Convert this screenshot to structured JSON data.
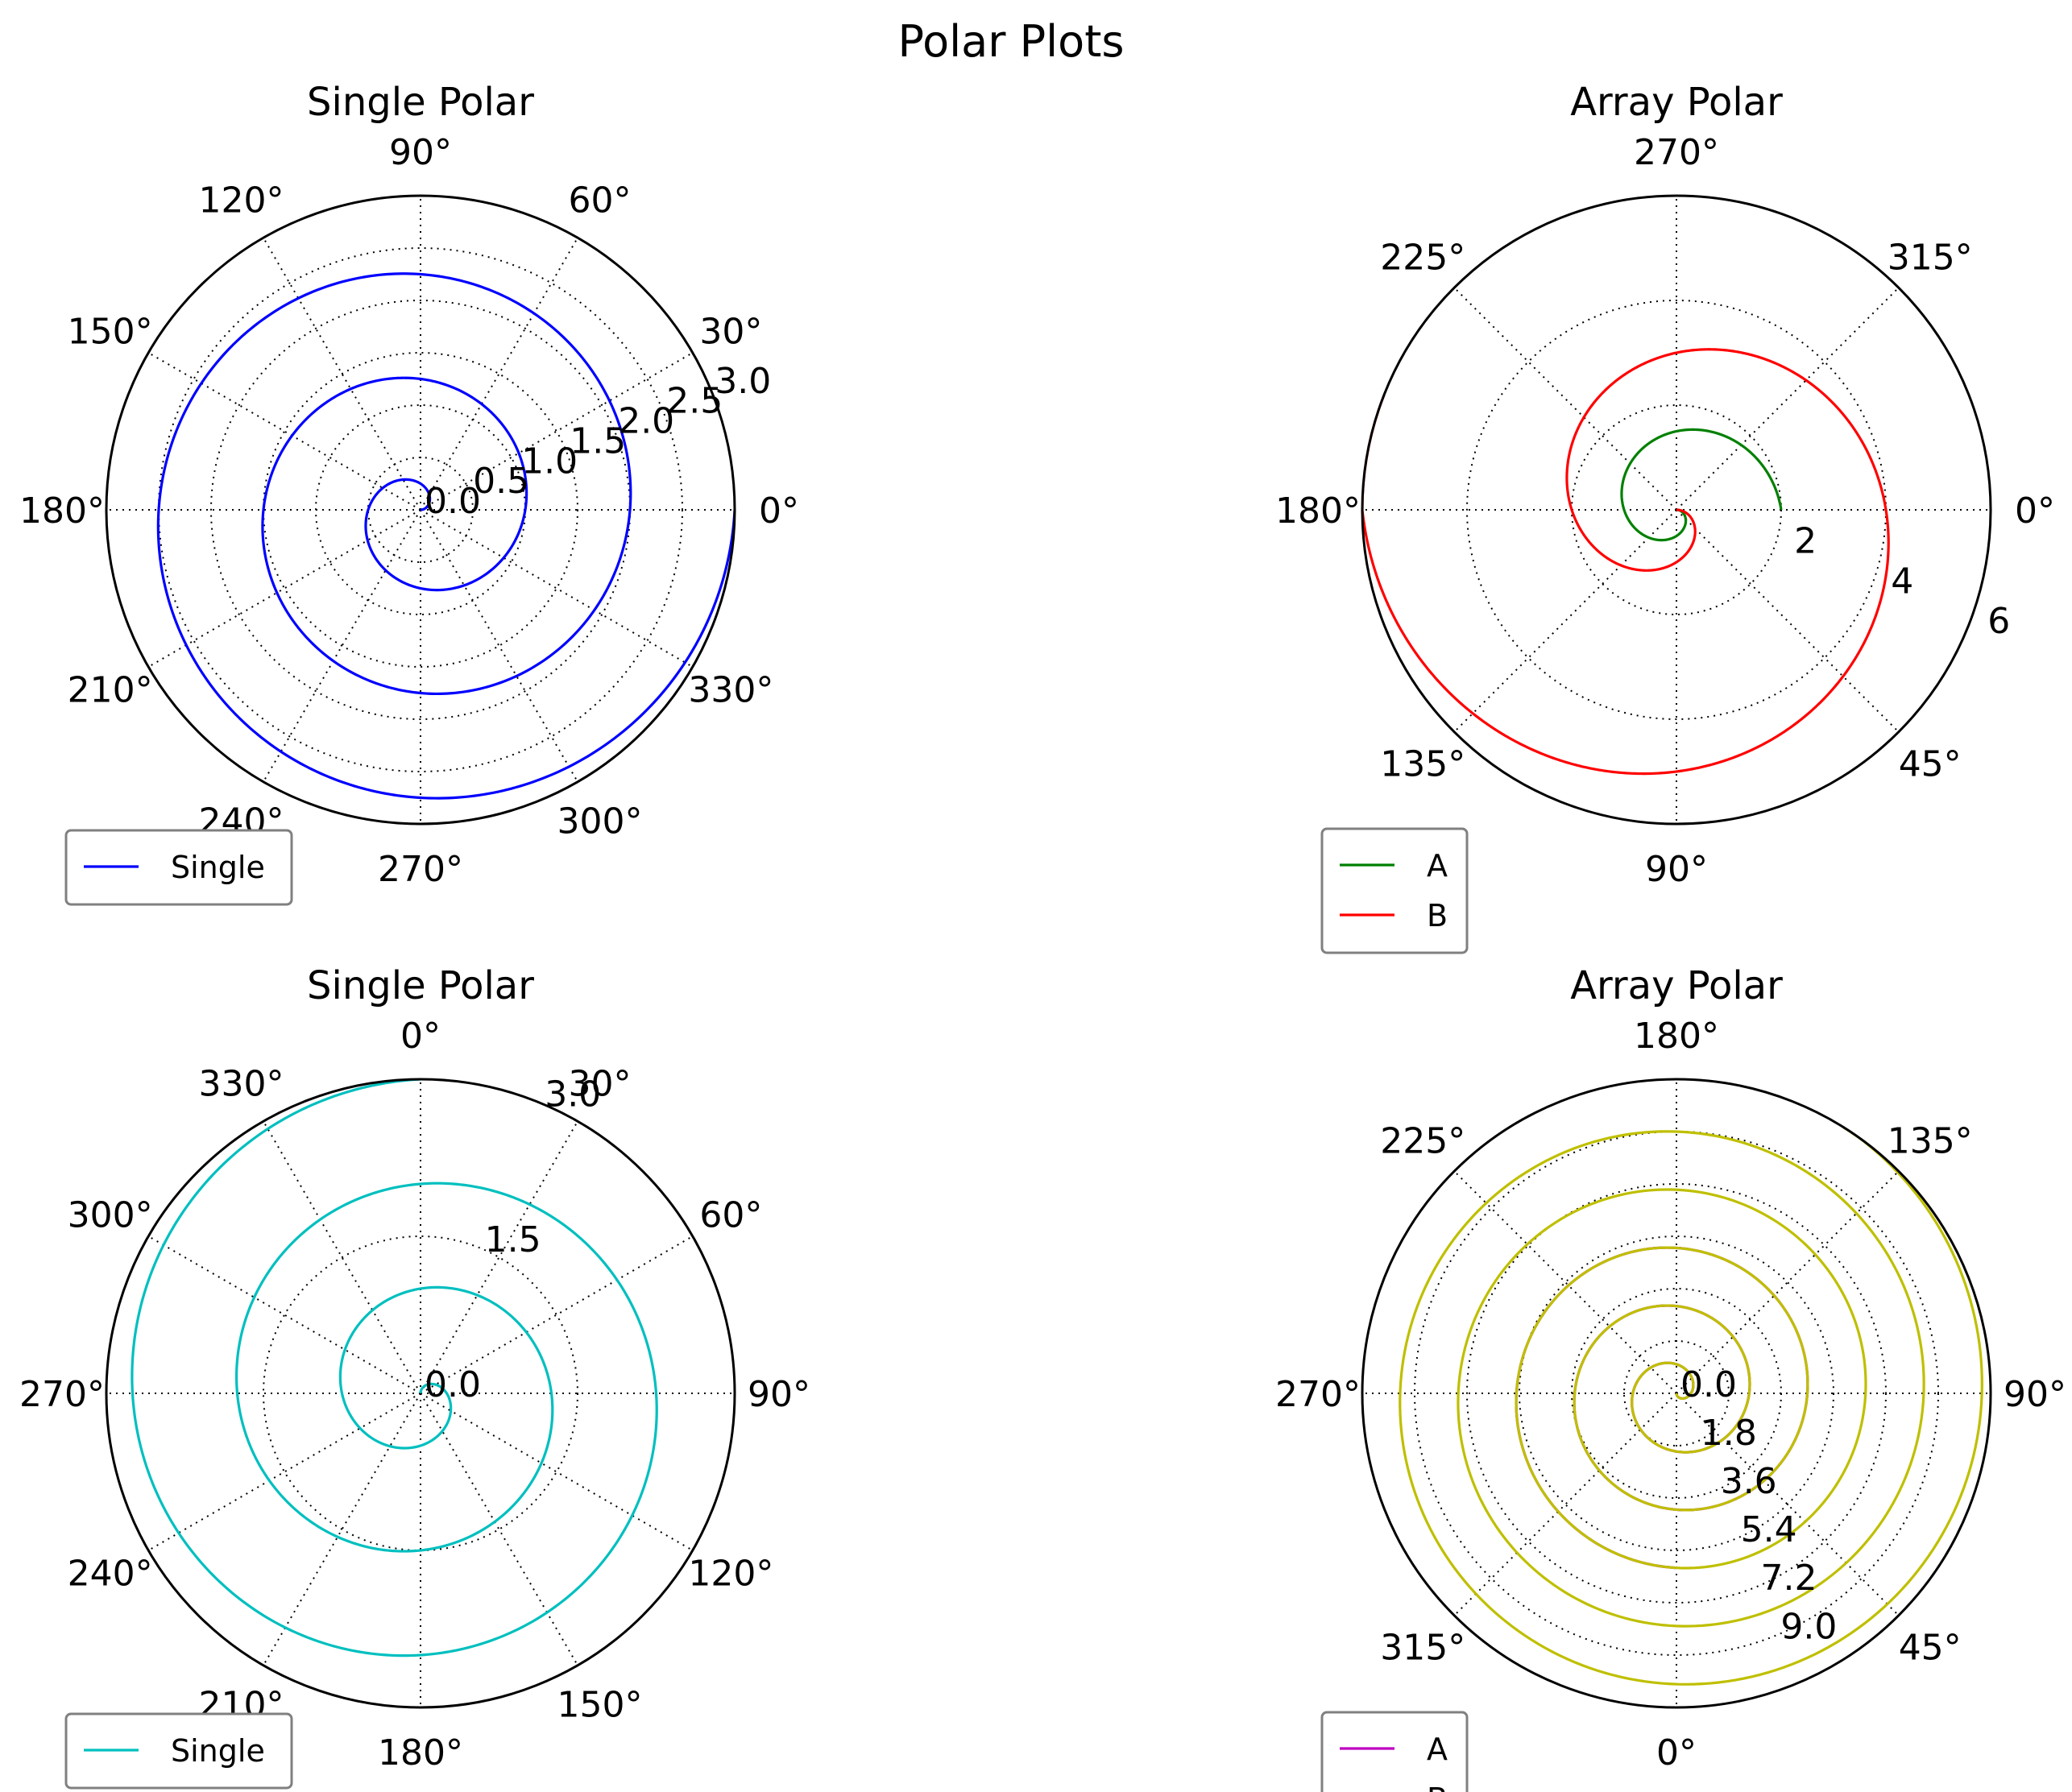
{
  "figure": {
    "suptitle": "Polar Plots"
  },
  "colors": {
    "frame": "#000000",
    "grid": "#000000",
    "legend_edge": "#808080",
    "text": "#000000"
  },
  "chart_data": [
    {
      "type": "line",
      "projection": "polar",
      "title": "Single Polar",
      "theta_zero_location": "E",
      "theta_direction": "counterclockwise",
      "theta_tick_labels": [
        "0°",
        "30°",
        "60°",
        "90°",
        "120°",
        "150°",
        "180°",
        "210°",
        "240°",
        "270°",
        "300°",
        "330°"
      ],
      "r_ticks": [
        0.0,
        0.5,
        1.0,
        1.5,
        2.0,
        2.5,
        3.0
      ],
      "r_tick_labels": [
        "0.0",
        "0.5",
        "1.0",
        "1.5",
        "2.0",
        "2.5",
        "3.0"
      ],
      "rlim": [
        0,
        3.0
      ],
      "grid": true,
      "legend_placement": "lower-left",
      "series": [
        {
          "name": "Single",
          "color": "#0000ff",
          "r": "theta / (2*pi)",
          "theta_range": [
            0,
            18.85
          ]
        }
      ]
    },
    {
      "type": "line",
      "projection": "polar",
      "title": "Array Polar",
      "theta_zero_location": "E",
      "theta_direction": "clockwise",
      "theta_tick_labels": [
        "0°",
        "45°",
        "90°",
        "135°",
        "180°",
        "225°",
        "270°",
        "315°"
      ],
      "r_ticks": [
        2,
        4,
        6
      ],
      "r_tick_labels": [
        "2",
        "4",
        "6"
      ],
      "rlim": [
        0,
        6
      ],
      "grid": true,
      "legend_placement": "lower-left",
      "series": [
        {
          "name": "A",
          "color": "#008000",
          "r": "theta / pi",
          "theta_range": [
            0,
            6.283
          ]
        },
        {
          "name": "B",
          "color": "#ff0000",
          "r": "2 * theta / pi",
          "theta_range": [
            0,
            9.8
          ]
        }
      ]
    },
    {
      "type": "line",
      "projection": "polar",
      "title": "Single Polar",
      "theta_zero_location": "N",
      "theta_direction": "clockwise",
      "theta_tick_labels": [
        "0°",
        "30°",
        "60°",
        "90°",
        "120°",
        "150°",
        "180°",
        "210°",
        "240°",
        "270°",
        "300°",
        "330°"
      ],
      "r_ticks": [
        0.0,
        1.5,
        3.0
      ],
      "r_tick_labels": [
        "0.0",
        "1.5",
        "3.0"
      ],
      "rlim": [
        0,
        3.0
      ],
      "grid": true,
      "legend_placement": "lower-left",
      "series": [
        {
          "name": "Single",
          "color": "#00bfbf",
          "r": "theta / (2*pi)",
          "theta_range": [
            0,
            18.85
          ]
        }
      ]
    },
    {
      "type": "line",
      "projection": "polar",
      "title": "Array Polar",
      "theta_zero_location": "S",
      "theta_direction": "counterclockwise",
      "theta_tick_labels": [
        "0°",
        "45°",
        "90°",
        "135°",
        "180°",
        "225°",
        "270°",
        "315°"
      ],
      "r_ticks": [
        0.0,
        1.8,
        3.6,
        5.4,
        7.2,
        9.0
      ],
      "r_tick_labels": [
        "0.0",
        "1.8",
        "3.6",
        "5.4",
        "7.2",
        "9.0"
      ],
      "rlim": [
        0,
        10.8
      ],
      "grid": true,
      "legend_placement": "lower-left",
      "series": [
        {
          "name": "A",
          "color": "#bf00bf",
          "r": "theta / pi",
          "theta_range": [
            0,
            18.85
          ]
        },
        {
          "name": "B",
          "color": "#bfbf00",
          "r": "theta / pi",
          "theta_range": [
            0,
            34.0
          ]
        }
      ]
    }
  ]
}
